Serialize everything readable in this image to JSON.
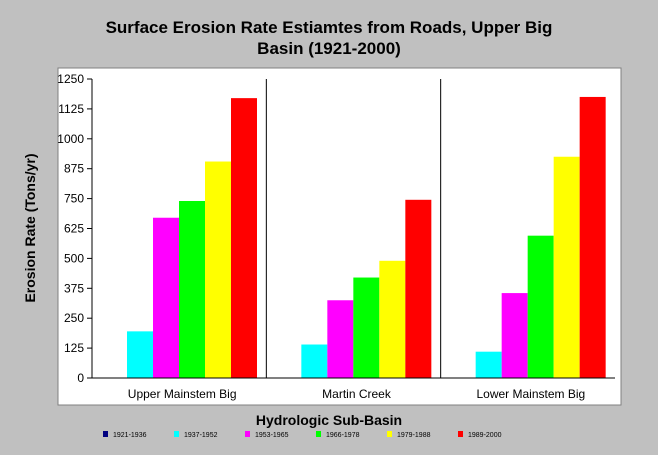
{
  "chart_data": {
    "type": "bar",
    "title_line1": "Surface Erosion Rate Estiamtes from Roads, Upper Big",
    "title_line2": "Basin (1921-2000)",
    "xlabel": "Hydrologic Sub-Basin",
    "ylabel": "Erosion Rate (Tons/yr)",
    "ylim": [
      0,
      1250
    ],
    "yticks": [
      "0",
      "125",
      "250",
      "375",
      "500",
      "625",
      "750",
      "875",
      "1000",
      "1125",
      "1250"
    ],
    "categories": [
      "Upper Mainstem Big",
      "Martin Creek",
      "Lower Mainstem Big"
    ],
    "series": [
      {
        "name": "1921-1936",
        "color": "#000080",
        "values": [
          0,
          0,
          0
        ]
      },
      {
        "name": "1937-1952",
        "color": "#00ffff",
        "values": [
          195,
          140,
          110
        ]
      },
      {
        "name": "1953-1965",
        "color": "#ff00ff",
        "values": [
          670,
          325,
          355
        ]
      },
      {
        "name": "1966-1978",
        "color": "#00ff00",
        "values": [
          740,
          420,
          595
        ]
      },
      {
        "name": "1979-1988",
        "color": "#ffff00",
        "values": [
          905,
          490,
          925
        ]
      },
      {
        "name": "1989-2000",
        "color": "#ff0000",
        "values": [
          1170,
          745,
          1175
        ]
      }
    ],
    "grid": false,
    "legend_position": "bottom"
  }
}
